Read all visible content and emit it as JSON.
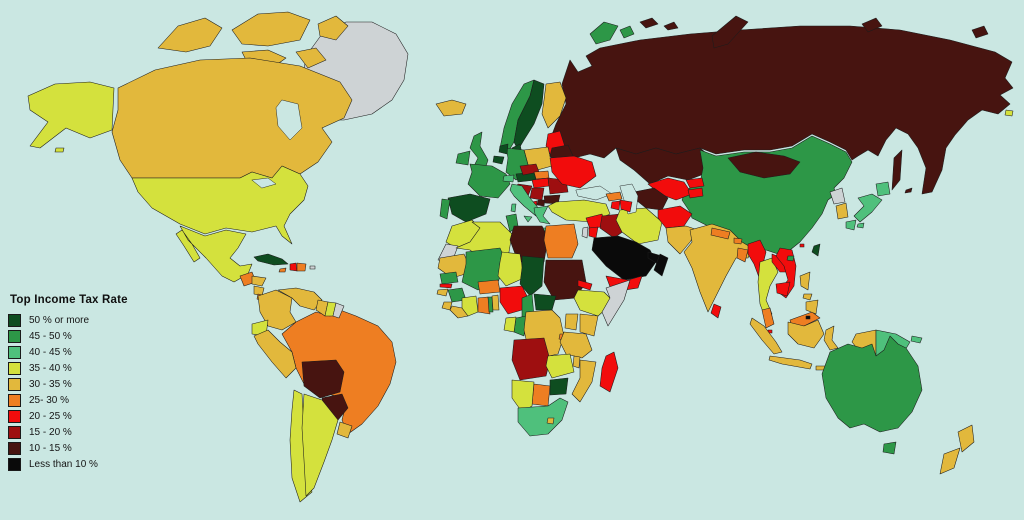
{
  "colors": {
    "ocean": "#cae7e2",
    "border": "#1c1c1c",
    "no_data": "#ced3d5"
  },
  "legend": {
    "title": "Top Income Tax Rate",
    "items": [
      {
        "band": "b50",
        "label": "50 % or more",
        "color": "#0e4d20"
      },
      {
        "band": "b45",
        "label": "45 - 50 %",
        "color": "#2d9747"
      },
      {
        "band": "b40",
        "label": "40 - 45 %",
        "color": "#4fc07c"
      },
      {
        "band": "b35",
        "label": "35 - 40 %",
        "color": "#d4e13d"
      },
      {
        "band": "b30",
        "label": "30 - 35 %",
        "color": "#e2b83c"
      },
      {
        "band": "b25",
        "label": "25- 30 %",
        "color": "#ee7e22"
      },
      {
        "band": "b20",
        "label": "20 - 25 %",
        "color": "#f20c0c"
      },
      {
        "band": "b15",
        "label": "15 - 20 %",
        "color": "#9e0f10"
      },
      {
        "band": "b10",
        "label": "10 - 15 %",
        "color": "#471410"
      },
      {
        "band": "b0",
        "label": "Less than 10 %",
        "color": "#0a0a0a"
      }
    ]
  },
  "countries": {
    "russia": {
      "name": "Russia",
      "band": "b10"
    },
    "novaya_zemlya": {
      "name": "Novaya Zemlya",
      "band": "b10"
    },
    "franz_josef": {
      "name": "Franz Josef Land",
      "band": "b10"
    },
    "severnaya_zemlya": {
      "name": "Severnaya Zemlya",
      "band": "b10"
    },
    "wrangel": {
      "name": "Wrangel Island",
      "band": "b10"
    },
    "sakhalin": {
      "name": "Sakhalin",
      "band": "b10"
    },
    "kurils": {
      "name": "Kuril Islands",
      "band": "b10"
    },
    "svalbard": {
      "name": "Svalbard",
      "band": "b45"
    },
    "kazakhstan": {
      "name": "Kazakhstan",
      "band": "b10"
    },
    "china": {
      "name": "China",
      "band": "b45"
    },
    "mongolia": {
      "name": "Mongolia",
      "band": "b10"
    },
    "uzbekistan": {
      "name": "Uzbekistan",
      "band": "b20"
    },
    "turkmenistan": {
      "name": "Turkmenistan",
      "band": "b10"
    },
    "kyrgyzstan": {
      "name": "Kyrgyzstan",
      "band": "b20"
    },
    "tajikistan": {
      "name": "Tajikistan",
      "band": "b20"
    },
    "georgia": {
      "name": "Georgia",
      "band": "b25"
    },
    "armenia": {
      "name": "Armenia",
      "band": "b20"
    },
    "azerbaijan": {
      "name": "Azerbaijan",
      "band": "b20"
    },
    "turkey": {
      "name": "Turkey",
      "band": "b35"
    },
    "syria": {
      "name": "Syria",
      "band": "b20"
    },
    "israel": {
      "name": "Israel",
      "band": "nodata"
    },
    "jordan": {
      "name": "Jordan",
      "band": "b20"
    },
    "iraq": {
      "name": "Iraq",
      "band": "b15"
    },
    "iran": {
      "name": "Iran",
      "band": "b35"
    },
    "kuwait": {
      "name": "Kuwait",
      "band": "b0"
    },
    "saudi": {
      "name": "Saudi Arabia",
      "band": "b0"
    },
    "qatar_uae": {
      "name": "Qatar / U.A.E.",
      "band": "b0"
    },
    "oman": {
      "name": "Oman",
      "band": "b0"
    },
    "yemen": {
      "name": "Yemen",
      "band": "b20"
    },
    "afghanistan": {
      "name": "Afghanistan",
      "band": "b20"
    },
    "pakistan": {
      "name": "Pakistan",
      "band": "b30"
    },
    "india": {
      "name": "India",
      "band": "b30"
    },
    "nepal": {
      "name": "Nepal",
      "band": "b25"
    },
    "bhutan": {
      "name": "Bhutan",
      "band": "b25"
    },
    "bangladesh": {
      "name": "Bangladesh",
      "band": "b25"
    },
    "srilanka": {
      "name": "Sri Lanka",
      "band": "b20"
    },
    "myanmar": {
      "name": "Myanmar",
      "band": "b20"
    },
    "thailand": {
      "name": "Thailand",
      "band": "b35"
    },
    "laos": {
      "name": "Laos",
      "band": "b20"
    },
    "vietnam": {
      "name": "Vietnam",
      "band": "b20"
    },
    "cambodia": {
      "name": "Cambodia",
      "band": "b20"
    },
    "malaysia": {
      "name": "Malaysia",
      "band": "b25"
    },
    "singapore": {
      "name": "Singapore",
      "band": "b20"
    },
    "brunei": {
      "name": "Brunei",
      "band": "b0"
    },
    "indonesia": {
      "name": "Indonesia",
      "band": "b30"
    },
    "png": {
      "name": "Papua New Guinea",
      "band": "b40"
    },
    "philippines": {
      "name": "Philippines",
      "band": "b30"
    },
    "nkorea": {
      "name": "North Korea",
      "band": "nodata"
    },
    "skorea": {
      "name": "South Korea",
      "band": "b30"
    },
    "japan": {
      "name": "Japan",
      "band": "b40"
    },
    "taiwan": {
      "name": "Taiwan",
      "band": "b50"
    },
    "hongkong": {
      "name": "Hong Kong",
      "band": "b20"
    },
    "hainan": {
      "name": "Hainan",
      "band": "b45"
    },
    "iceland": {
      "name": "Iceland",
      "band": "b30"
    },
    "ireland": {
      "name": "Ireland",
      "band": "b45"
    },
    "uk": {
      "name": "United Kingdom",
      "band": "b45"
    },
    "norway": {
      "name": "Norway",
      "band": "b45"
    },
    "sweden": {
      "name": "Sweden",
      "band": "b50"
    },
    "finland": {
      "name": "Finland",
      "band": "b30"
    },
    "denmark": {
      "name": "Denmark",
      "band": "b50"
    },
    "baltics": {
      "name": "Baltic States",
      "band": "b20"
    },
    "belarus": {
      "name": "Belarus",
      "band": "b10"
    },
    "poland": {
      "name": "Poland",
      "band": "b30"
    },
    "germany": {
      "name": "Germany",
      "band": "b45"
    },
    "netherlands": {
      "name": "Netherlands",
      "band": "b50"
    },
    "belgium": {
      "name": "Belgium",
      "band": "b50"
    },
    "france": {
      "name": "France",
      "band": "b45"
    },
    "spain": {
      "name": "Spain",
      "band": "b50"
    },
    "portugal": {
      "name": "Portugal",
      "band": "b45"
    },
    "switzerland": {
      "name": "Switzerland",
      "band": "b40"
    },
    "austria": {
      "name": "Austria",
      "band": "b50"
    },
    "czech": {
      "name": "Czech Republic",
      "band": "b15"
    },
    "slovakia": {
      "name": "Slovakia",
      "band": "b25"
    },
    "hungary": {
      "name": "Hungary",
      "band": "b20"
    },
    "croatia_slovenia": {
      "name": "Slovenia / Croatia",
      "band": "b15"
    },
    "serbia": {
      "name": "Serbia / Bosnia",
      "band": "b15"
    },
    "albania": {
      "name": "Albania",
      "band": "b20"
    },
    "macedonia": {
      "name": "Macedonia",
      "band": "b10"
    },
    "greece": {
      "name": "Greece",
      "band": "b40"
    },
    "italy": {
      "name": "Italy",
      "band": "b40"
    },
    "romania": {
      "name": "Romania",
      "band": "b15"
    },
    "bulgaria": {
      "name": "Bulgaria",
      "band": "b10"
    },
    "ukraine": {
      "name": "Ukraine",
      "band": "b20"
    },
    "morocco": {
      "name": "Morocco",
      "band": "b35"
    },
    "wsahara": {
      "name": "Western Sahara",
      "band": "nodata"
    },
    "algeria": {
      "name": "Algeria",
      "band": "b35"
    },
    "tunisia": {
      "name": "Tunisia",
      "band": "b45"
    },
    "libya": {
      "name": "Libya",
      "band": "b10"
    },
    "egypt": {
      "name": "Egypt",
      "band": "b25"
    },
    "mauritania": {
      "name": "Mauritania",
      "band": "b30"
    },
    "mali": {
      "name": "Mali",
      "band": "b45"
    },
    "niger": {
      "name": "Niger",
      "band": "b35"
    },
    "chad": {
      "name": "Chad",
      "band": "b50"
    },
    "sudan": {
      "name": "Sudan",
      "band": "b10"
    },
    "eritrea": {
      "name": "Eritrea",
      "band": "b20"
    },
    "ethiopia": {
      "name": "Ethiopia",
      "band": "b35"
    },
    "somalia": {
      "name": "Somalia",
      "band": "nodata"
    },
    "kenya": {
      "name": "Kenya",
      "band": "b30"
    },
    "uganda": {
      "name": "Uganda",
      "band": "b30"
    },
    "senegal": {
      "name": "Senegal",
      "band": "b45"
    },
    "gambia": {
      "name": "Gambia",
      "band": "b20"
    },
    "guineabissau": {
      "name": "Guinea-Bissau",
      "band": "b30"
    },
    "guinea": {
      "name": "Guinea",
      "band": "b45"
    },
    "sierraleone": {
      "name": "Sierra Leone",
      "band": "b30"
    },
    "liberia": {
      "name": "Liberia",
      "band": "b30"
    },
    "ivorycoast": {
      "name": "Ivory Coast",
      "band": "b35"
    },
    "ghana": {
      "name": "Ghana",
      "band": "b25"
    },
    "togo": {
      "name": "Togo",
      "band": "b45"
    },
    "benin": {
      "name": "Benin",
      "band": "b30"
    },
    "burkina": {
      "name": "Burkina Faso",
      "band": "b25"
    },
    "nigeria": {
      "name": "Nigeria",
      "band": "b20"
    },
    "cameroon": {
      "name": "Cameroon",
      "band": "b45"
    },
    "car": {
      "name": "Central African Republic",
      "band": "b50"
    },
    "congo": {
      "name": "Congo",
      "band": "b45"
    },
    "gabon": {
      "name": "Gabon",
      "band": "b35"
    },
    "drc": {
      "name": "DR Congo",
      "band": "b30"
    },
    "rwanda_burundi": {
      "name": "Rwanda / Burundi",
      "band": "b25"
    },
    "tanzania": {
      "name": "Tanzania",
      "band": "b30"
    },
    "angola": {
      "name": "Angola",
      "band": "b15"
    },
    "zambia": {
      "name": "Zambia",
      "band": "b35"
    },
    "malawi": {
      "name": "Malawi",
      "band": "b30"
    },
    "mozambique": {
      "name": "Mozambique",
      "band": "b30"
    },
    "zimbabwe": {
      "name": "Zimbabwe",
      "band": "b50"
    },
    "botswana": {
      "name": "Botswana",
      "band": "b25"
    },
    "namibia": {
      "name": "Namibia",
      "band": "b35"
    },
    "southafrica": {
      "name": "South Africa",
      "band": "b40"
    },
    "lesotho": {
      "name": "Lesotho",
      "band": "b30"
    },
    "madagascar": {
      "name": "Madagascar",
      "band": "b20"
    },
    "greenland": {
      "name": "Greenland",
      "band": "nodata"
    },
    "canadian_arctic": {
      "name": "Canada (Arctic Islands)",
      "band": "b30"
    },
    "canada": {
      "name": "Canada",
      "band": "b30"
    },
    "alaska": {
      "name": "Alaska (USA)",
      "band": "b35"
    },
    "usa": {
      "name": "United States",
      "band": "b35"
    },
    "mexico": {
      "name": "Mexico",
      "band": "b35"
    },
    "guatemala": {
      "name": "Guatemala / Belize",
      "band": "b25"
    },
    "honduras": {
      "name": "Honduras",
      "band": "b30"
    },
    "nicaragua": {
      "name": "Nicaragua",
      "band": "b30"
    },
    "costarica": {
      "name": "Costa Rica",
      "band": "b25"
    },
    "panama": {
      "name": "Panama",
      "band": "b25"
    },
    "cuba": {
      "name": "Cuba",
      "band": "b50"
    },
    "jamaica": {
      "name": "Jamaica",
      "band": "b25"
    },
    "haiti": {
      "name": "Haiti",
      "band": "b20"
    },
    "domrep": {
      "name": "Dominican Republic",
      "band": "b25"
    },
    "puertorico": {
      "name": "Puerto Rico",
      "band": "nodata"
    },
    "colombia": {
      "name": "Colombia",
      "band": "b30"
    },
    "venezuela": {
      "name": "Venezuela",
      "band": "b30"
    },
    "guyana": {
      "name": "Guyana",
      "band": "b30"
    },
    "suriname": {
      "name": "Suriname",
      "band": "b35"
    },
    "frguiana": {
      "name": "French Guiana",
      "band": "nodata"
    },
    "ecuador": {
      "name": "Ecuador",
      "band": "b35"
    },
    "peru": {
      "name": "Peru",
      "band": "b30"
    },
    "brazil": {
      "name": "Brazil",
      "band": "b25"
    },
    "bolivia": {
      "name": "Bolivia",
      "band": "b10"
    },
    "paraguay": {
      "name": "Paraguay",
      "band": "b10"
    },
    "chile": {
      "name": "Chile",
      "band": "b35"
    },
    "argentina": {
      "name": "Argentina",
      "band": "b35"
    },
    "uruguay": {
      "name": "Uruguay",
      "band": "b30"
    },
    "australia": {
      "name": "Australia",
      "band": "b45"
    },
    "tasmania": {
      "name": "Tasmania",
      "band": "b45"
    },
    "nz": {
      "name": "New Zealand",
      "band": "b30"
    }
  }
}
